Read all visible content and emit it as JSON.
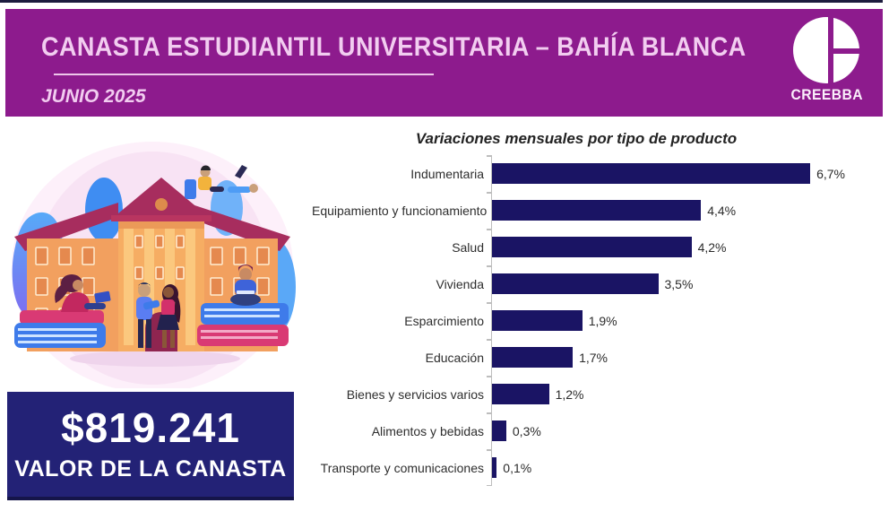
{
  "header": {
    "title": "CANASTA ESTUDIANTIL UNIVERSITARIA – BAHÍA BLANCA",
    "period": "JUNIO 2025",
    "org": "CREEBBA",
    "colors": {
      "band": "#8d1b8d",
      "text": "#f2cdf0"
    }
  },
  "value_box": {
    "amount": "$819.241",
    "label": "VALOR DE LA CANASTA",
    "color": "#232276"
  },
  "illustration": {
    "alt": "university building with students, books and laptops"
  },
  "chart_data": {
    "type": "bar",
    "orientation": "horizontal",
    "title": "Variaciones mensuales por tipo de producto",
    "categories": [
      "Indumentaria",
      "Equipamiento y funcionamiento",
      "Salud",
      "Vivienda",
      "Esparcimiento",
      "Educación",
      "Bienes y servicios varios",
      "Alimentos y bebidas",
      "Transporte y comunicaciones"
    ],
    "values": [
      6.7,
      4.4,
      4.2,
      3.5,
      1.9,
      1.7,
      1.2,
      0.3,
      0.1
    ],
    "value_labels": [
      "6,7%",
      "4,4%",
      "4,2%",
      "3,5%",
      "1,9%",
      "1,7%",
      "1,2%",
      "0,3%",
      "0,1%"
    ],
    "xlim": [
      0,
      7
    ],
    "bar_color": "#1a1464",
    "grid": false,
    "legend": false
  }
}
